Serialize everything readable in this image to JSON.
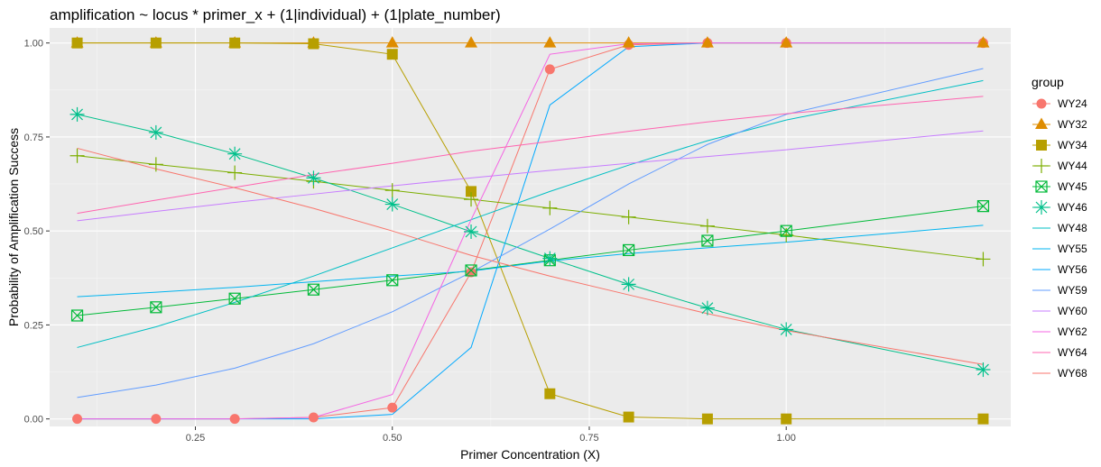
{
  "chart_data": {
    "type": "line",
    "title": "amplification ~  locus * primer_x + (1|individual) + (1|plate_number)",
    "xlabel": "Primer Concentration (X)",
    "ylabel": "Probability of Amplification Success",
    "xlim": [
      0.065,
      1.285
    ],
    "ylim": [
      -0.02,
      1.04
    ],
    "x_ticks": [
      0.25,
      0.5,
      0.75,
      1.0
    ],
    "x_tick_labels": [
      "0.25",
      "0.50",
      "0.75",
      "1.00"
    ],
    "y_ticks": [
      0,
      0.25,
      0.5,
      0.75,
      1.0
    ],
    "y_tick_labels": [
      "0.00",
      "0.25",
      "0.50",
      "0.75",
      "1.00"
    ],
    "grid": true,
    "legend_title": "group",
    "legend_position": "right",
    "series": [
      {
        "name": "WY24",
        "color": "#F8766D",
        "marker": "circle",
        "x": [
          0.1,
          0.2,
          0.3,
          0.4,
          0.5,
          0.6,
          0.7,
          0.8,
          0.9,
          1.0,
          1.25
        ],
        "y": [
          0.0,
          0.0,
          0.0,
          0.004,
          0.03,
          0.39,
          0.93,
          0.995,
          1.0,
          1.0,
          1.0
        ]
      },
      {
        "name": "WY32",
        "color": "#DE8C00",
        "marker": "triangle",
        "x": [
          0.1,
          0.2,
          0.3,
          0.4,
          0.5,
          0.6,
          0.7,
          0.8,
          0.9,
          1.0,
          1.25
        ],
        "y": [
          1.0,
          1.0,
          1.0,
          1.0,
          1.0,
          1.0,
          1.0,
          1.0,
          1.0,
          1.0,
          1.0
        ]
      },
      {
        "name": "WY34",
        "color": "#B79F00",
        "marker": "square",
        "x": [
          0.1,
          0.2,
          0.3,
          0.4,
          0.5,
          0.6,
          0.7,
          0.8,
          0.9,
          1.0,
          1.25
        ],
        "y": [
          1.0,
          1.0,
          1.0,
          0.998,
          0.97,
          0.605,
          0.067,
          0.005,
          0.0,
          0.0,
          0.0
        ]
      },
      {
        "name": "WY44",
        "color": "#7CAE00",
        "marker": "plus",
        "x": [
          0.1,
          0.2,
          0.3,
          0.4,
          0.5,
          0.6,
          0.7,
          0.8,
          0.9,
          1.0,
          1.25
        ],
        "y": [
          0.7,
          0.677,
          0.655,
          0.632,
          0.608,
          0.584,
          0.561,
          0.537,
          0.513,
          0.489,
          0.425
        ]
      },
      {
        "name": "WY45",
        "color": "#00BA38",
        "marker": "boxed-x",
        "x": [
          0.1,
          0.2,
          0.3,
          0.4,
          0.5,
          0.6,
          0.7,
          0.8,
          0.9,
          1.0,
          1.25
        ],
        "y": [
          0.275,
          0.297,
          0.32,
          0.344,
          0.369,
          0.395,
          0.422,
          0.449,
          0.474,
          0.5,
          0.566
        ]
      },
      {
        "name": "WY46",
        "color": "#00C08B",
        "marker": "asterisk",
        "x": [
          0.1,
          0.2,
          0.3,
          0.4,
          0.5,
          0.6,
          0.7,
          0.8,
          0.9,
          1.0,
          1.25
        ],
        "y": [
          0.81,
          0.762,
          0.705,
          0.641,
          0.571,
          0.498,
          0.427,
          0.358,
          0.295,
          0.238,
          0.131
        ]
      },
      {
        "name": "WY48",
        "color": "#00BFC4",
        "marker": "none",
        "x": [
          0.1,
          0.2,
          0.3,
          0.4,
          0.5,
          0.6,
          0.7,
          0.8,
          0.9,
          1.0,
          1.25
        ],
        "y": [
          0.19,
          0.245,
          0.31,
          0.38,
          0.455,
          0.53,
          0.605,
          0.675,
          0.74,
          0.795,
          0.9
        ]
      },
      {
        "name": "WY55",
        "color": "#00B4F0",
        "marker": "none",
        "x": [
          0.1,
          0.2,
          0.3,
          0.4,
          0.5,
          0.6,
          0.7,
          0.8,
          0.9,
          1.0,
          1.25
        ],
        "y": [
          0.325,
          0.337,
          0.35,
          0.365,
          0.38,
          0.393,
          0.42,
          0.44,
          0.455,
          0.47,
          0.515
        ]
      },
      {
        "name": "WY56",
        "color": "#00A9FF",
        "marker": "none",
        "x": [
          0.1,
          0.2,
          0.3,
          0.4,
          0.5,
          0.6,
          0.7,
          0.8,
          0.9,
          1.0,
          1.25
        ],
        "y": [
          0.0,
          0.0,
          0.0,
          0.0,
          0.012,
          0.19,
          0.835,
          0.99,
          1.0,
          1.0,
          1.0
        ]
      },
      {
        "name": "WY59",
        "color": "#619CFF",
        "marker": "none",
        "x": [
          0.1,
          0.2,
          0.3,
          0.4,
          0.5,
          0.6,
          0.7,
          0.8,
          0.9,
          1.0,
          1.25
        ],
        "y": [
          0.057,
          0.09,
          0.135,
          0.2,
          0.285,
          0.39,
          0.505,
          0.625,
          0.73,
          0.81,
          0.932
        ]
      },
      {
        "name": "WY60",
        "color": "#C77CFF",
        "marker": "none",
        "x": [
          0.1,
          0.2,
          0.3,
          0.4,
          0.5,
          0.6,
          0.7,
          0.8,
          0.9,
          1.0,
          1.25
        ],
        "y": [
          0.527,
          0.552,
          0.576,
          0.598,
          0.62,
          0.641,
          0.661,
          0.68,
          0.698,
          0.716,
          0.766
        ]
      },
      {
        "name": "WY62",
        "color": "#F564E3",
        "marker": "none",
        "x": [
          0.1,
          0.2,
          0.3,
          0.4,
          0.5,
          0.6,
          0.7,
          0.8,
          0.9,
          1.0,
          1.25
        ],
        "y": [
          0.0,
          0.0,
          0.0,
          0.004,
          0.065,
          0.53,
          0.97,
          0.998,
          1.0,
          1.0,
          1.0
        ]
      },
      {
        "name": "WY64",
        "color": "#FF64B0",
        "marker": "none",
        "x": [
          0.1,
          0.2,
          0.3,
          0.4,
          0.5,
          0.6,
          0.7,
          0.8,
          0.9,
          1.0,
          1.25
        ],
        "y": [
          0.547,
          0.582,
          0.616,
          0.65,
          0.68,
          0.712,
          0.738,
          0.765,
          0.79,
          0.812,
          0.858
        ]
      },
      {
        "name": "WY68",
        "color": "#F8766D",
        "marker": "none",
        "x": [
          0.1,
          0.2,
          0.3,
          0.4,
          0.5,
          0.6,
          0.7,
          0.8,
          0.9,
          1.0,
          1.25
        ],
        "y": [
          0.72,
          0.665,
          0.615,
          0.56,
          0.5,
          0.435,
          0.38,
          0.33,
          0.28,
          0.235,
          0.145
        ]
      }
    ]
  }
}
